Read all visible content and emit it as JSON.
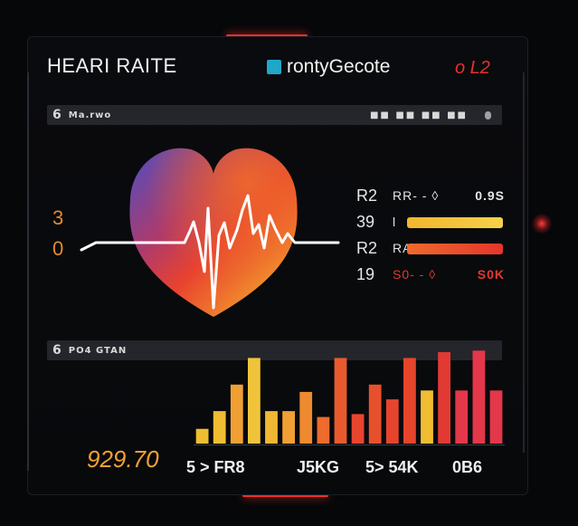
{
  "header": {
    "title": "HEARI RAITE",
    "brand": "rontyGecote",
    "brand_tag": "o L2"
  },
  "panel_top": {
    "num": "6",
    "label": "Ma.rwo",
    "right_text": "■■ ■■ ■■ ■■"
  },
  "panel_bottom": {
    "num": "6",
    "label": "PO4 GTAN"
  },
  "left_axis": [
    "3",
    "0"
  ],
  "stats": [
    {
      "num": "R2",
      "label": "RR- - ◊",
      "value": "0.9S",
      "color": "#e6e6e6"
    },
    {
      "num": "39",
      "label": "l",
      "value": "",
      "color": "#f0c43a"
    },
    {
      "num": "R2",
      "label": "RA",
      "value": "",
      "color": "#e7552c"
    },
    {
      "num": "19",
      "label": "S0- - ◊",
      "value": "S0K",
      "color": "#e23a32"
    }
  ],
  "bottom_value": "929.70",
  "footer": [
    "5 > FR8",
    "J5KG",
    "5> 54K",
    "0B6"
  ],
  "colors": {
    "accent_red": "#e8322a",
    "orange": "#f2a233",
    "yellow": "#f0c43a",
    "brand_icon": "#1ea7c9"
  },
  "chart_data": {
    "type": "bar",
    "values": [
      10,
      22,
      40,
      58,
      22,
      22,
      35,
      18,
      58,
      20,
      40,
      30,
      58,
      36,
      62,
      36,
      63,
      36
    ],
    "colors": [
      "#f0bd32",
      "#f0bd32",
      "#f0a033",
      "#f0c43a",
      "#f0b734",
      "#f0a033",
      "#ee8a2f",
      "#ec6b2d",
      "#e85a2e",
      "#e8452e",
      "#e7502d",
      "#e7442d",
      "#e6452c",
      "#f0bd32",
      "#e23a32",
      "#e3374a",
      "#e3374a",
      "#e3374a"
    ],
    "ylim": [
      0,
      65
    ]
  }
}
